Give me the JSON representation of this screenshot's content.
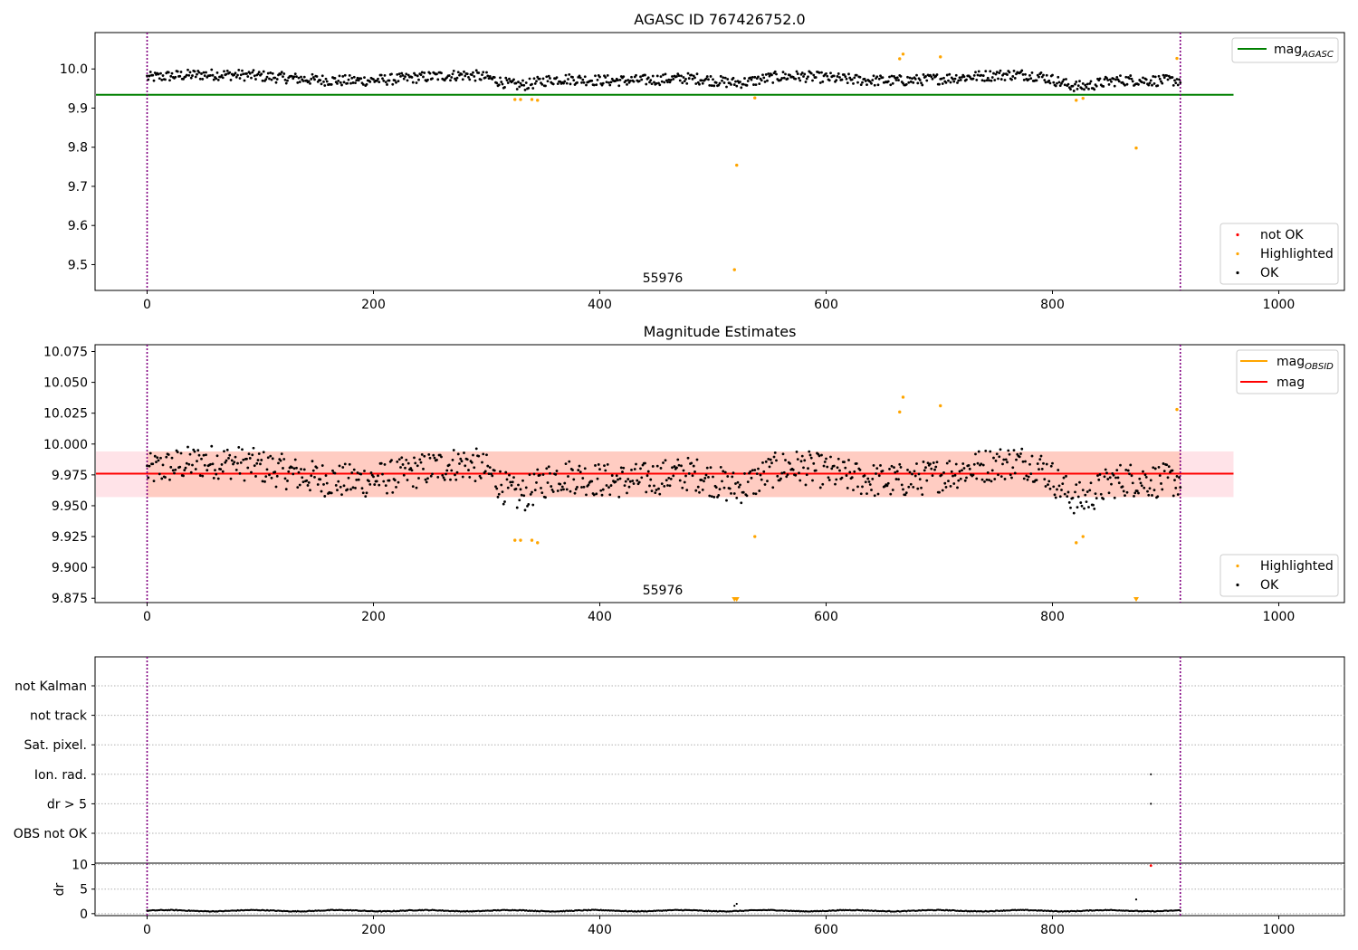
{
  "figure": {
    "background": "#ffffff"
  },
  "chart_data": [
    {
      "type": "scatter",
      "title": "AGASC ID 767426752.0",
      "xlabel": "",
      "ylabel": "",
      "xlim": [
        -46,
        1058
      ],
      "ylim": [
        9.434,
        10.093
      ],
      "xticks": [
        "0",
        "200",
        "400",
        "600",
        "800",
        "1000"
      ],
      "yticks": [
        "9.5",
        "9.6",
        "9.7",
        "9.8",
        "9.9",
        "10.0"
      ],
      "grid": false,
      "legend_upper": {
        "placement": "upper-right",
        "entries": [
          "mag_AGASC"
        ]
      },
      "legend_lower": {
        "placement": "lower-right",
        "entries": [
          "not OK",
          "Highlighted",
          "OK"
        ]
      },
      "hlines": [
        {
          "name": "mag_AGASC",
          "y": 9.934,
          "x_range": [
            -46,
            960
          ],
          "color": "#008000"
        }
      ],
      "vlines": [
        {
          "x": 0,
          "color": "#800080"
        },
        {
          "x": 913,
          "color": "#800080"
        }
      ],
      "annotation": {
        "text": "55976",
        "x": 455,
        "y": 9.46
      },
      "colors": {
        "ok": "#000000",
        "highlighted": "#ffa500",
        "not_ok": "#ff0000"
      },
      "points_ok": {
        "n": 914,
        "base": 9.978,
        "amp": 0.013,
        "noise": 0.014,
        "dips": [
          [
            320,
            335,
            25,
            0.025
          ],
          [
            515,
            525,
            30,
            0.02
          ],
          [
            815,
            830,
            25,
            0.025
          ]
        ]
      },
      "points_highlighted": [
        [
          325,
          9.922
        ],
        [
          330,
          9.922
        ],
        [
          340,
          9.922
        ],
        [
          345,
          9.92
        ],
        [
          519,
          9.487
        ],
        [
          521,
          9.754
        ],
        [
          537,
          9.926
        ],
        [
          665,
          10.026
        ],
        [
          668,
          10.038
        ],
        [
          701,
          10.031
        ],
        [
          821,
          9.92
        ],
        [
          827,
          9.925
        ],
        [
          874,
          9.798
        ],
        [
          910,
          10.027
        ]
      ]
    },
    {
      "type": "scatter",
      "title": "Magnitude Estimates",
      "xlabel": "",
      "ylabel": "",
      "xlim": [
        -46,
        1058
      ],
      "ylim": [
        9.8715,
        10.0805
      ],
      "xticks": [
        "0",
        "200",
        "400",
        "600",
        "800",
        "1000"
      ],
      "yticks": [
        "9.875",
        "9.900",
        "9.925",
        "9.950",
        "9.975",
        "10.000",
        "10.025",
        "10.050",
        "10.075"
      ],
      "grid": false,
      "legend_upper": {
        "placement": "upper-right",
        "entries": [
          "mag_OBSID",
          "mag"
        ]
      },
      "legend_lower": {
        "placement": "lower-right",
        "entries": [
          "Highlighted",
          "OK"
        ]
      },
      "hlines": [
        {
          "name": "mag",
          "y": 9.976,
          "x_range": [
            -46,
            960
          ],
          "color": "#ff0000"
        }
      ],
      "bands": [
        {
          "name": "mag band",
          "y": [
            9.957,
            9.994
          ],
          "x_range": [
            -46,
            960
          ],
          "color": "#ffc0cb",
          "opacity": 0.45
        },
        {
          "name": "mag_OBSID band",
          "y": [
            9.957,
            9.994
          ],
          "x_range": [
            0,
            913
          ],
          "color": "#ffa07a",
          "opacity": 0.35
        }
      ],
      "vlines": [
        {
          "x": 0,
          "color": "#800080"
        },
        {
          "x": 913,
          "color": "#800080"
        }
      ],
      "annotation": {
        "text": "55976",
        "x": 455,
        "y": 9.877
      },
      "points_highlighted": [
        [
          325,
          9.922
        ],
        [
          330,
          9.922
        ],
        [
          340,
          9.922
        ],
        [
          345,
          9.92
        ],
        [
          537,
          9.925
        ],
        [
          665,
          10.026
        ],
        [
          668,
          10.038
        ],
        [
          701,
          10.031
        ],
        [
          821,
          9.92
        ],
        [
          827,
          9.925
        ],
        [
          910,
          10.028
        ]
      ],
      "markers_offscale": [
        [
          519,
          9.8725
        ],
        [
          521,
          9.8725
        ],
        [
          874,
          9.8725
        ]
      ]
    },
    {
      "type": "scatter",
      "title": "",
      "xlabel": "",
      "ylabel": "",
      "xlim": [
        -46,
        1058
      ],
      "flag_categories": [
        "OBS not OK",
        "dr > 5",
        "Ion. rad.",
        "Sat. pixel.",
        "not track",
        "not Kalman"
      ],
      "flag_points": [
        [
          887,
          "Ion. rad."
        ],
        [
          887,
          "dr > 5"
        ]
      ],
      "vlines": [
        {
          "x": 0,
          "color": "#800080"
        },
        {
          "x": 913,
          "color": "#800080"
        }
      ]
    },
    {
      "type": "scatter",
      "title": "",
      "xlabel": "",
      "ylabel": "dr",
      "xlim": [
        -46,
        1058
      ],
      "ylim": [
        -0.4,
        10.3
      ],
      "xticks": [
        "0",
        "200",
        "400",
        "600",
        "800",
        "1000"
      ],
      "yticks": [
        "0",
        "5",
        "10"
      ],
      "grid": true,
      "series": [
        {
          "name": "dr",
          "base": 0.4,
          "amp": 0.25
        }
      ],
      "points_extra": [
        [
          519,
          1.6
        ],
        [
          521,
          2.0
        ],
        [
          874,
          2.9
        ]
      ],
      "points_red": [
        [
          887,
          9.8
        ]
      ],
      "vlines": [
        {
          "x": 0,
          "color": "#800080"
        },
        {
          "x": 913,
          "color": "#800080"
        }
      ]
    }
  ],
  "legend_labels": {
    "mag_agasc": {
      "main": "mag",
      "sub": "AGASC"
    },
    "mag_obsid": {
      "main": "mag",
      "sub": "OBSID"
    },
    "mag": "mag",
    "not_ok": "not OK",
    "highlighted": "Highlighted",
    "ok": "OK"
  }
}
